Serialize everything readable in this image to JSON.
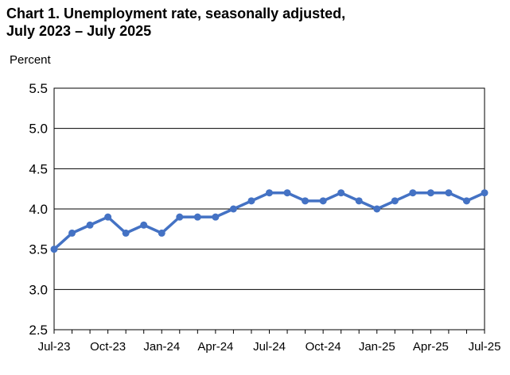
{
  "chart_data": {
    "type": "line",
    "title_lines": [
      "Chart 1. Unemployment rate, seasonally adjusted,",
      "July 2023 – July 2025"
    ],
    "ylabel": "Percent",
    "xlabel": "",
    "ylim": [
      2.5,
      5.5
    ],
    "yticks": [
      "2.5",
      "3.0",
      "3.5",
      "4.0",
      "4.5",
      "5.0",
      "5.5"
    ],
    "ytick_values": [
      2.5,
      3.0,
      3.5,
      4.0,
      4.5,
      5.0,
      5.5
    ],
    "x": [
      "Jul-23",
      "Aug-23",
      "Sep-23",
      "Oct-23",
      "Nov-23",
      "Dec-23",
      "Jan-24",
      "Feb-24",
      "Mar-24",
      "Apr-24",
      "May-24",
      "Jun-24",
      "Jul-24",
      "Aug-24",
      "Sep-24",
      "Oct-24",
      "Nov-24",
      "Dec-24",
      "Jan-25",
      "Feb-25",
      "Mar-25",
      "Apr-25",
      "May-25",
      "Jun-25",
      "Jul-25"
    ],
    "xtick_labels": [
      "Jul-23",
      "Oct-23",
      "Jan-24",
      "Apr-24",
      "Jul-24",
      "Oct-24",
      "Jan-25",
      "Apr-25",
      "Jul-25"
    ],
    "xtick_indices": [
      0,
      3,
      6,
      9,
      12,
      15,
      18,
      21,
      24
    ],
    "series": [
      {
        "values": [
          3.5,
          3.7,
          3.8,
          3.9,
          3.7,
          3.8,
          3.7,
          3.9,
          3.9,
          3.9,
          4.0,
          4.1,
          4.2,
          4.2,
          4.1,
          4.1,
          4.2,
          4.1,
          4.0,
          4.1,
          4.2,
          4.2,
          4.2,
          4.1,
          4.2
        ]
      }
    ],
    "grid": "horizontal",
    "line_color": "#4472C4",
    "grid_color": "#000000"
  }
}
